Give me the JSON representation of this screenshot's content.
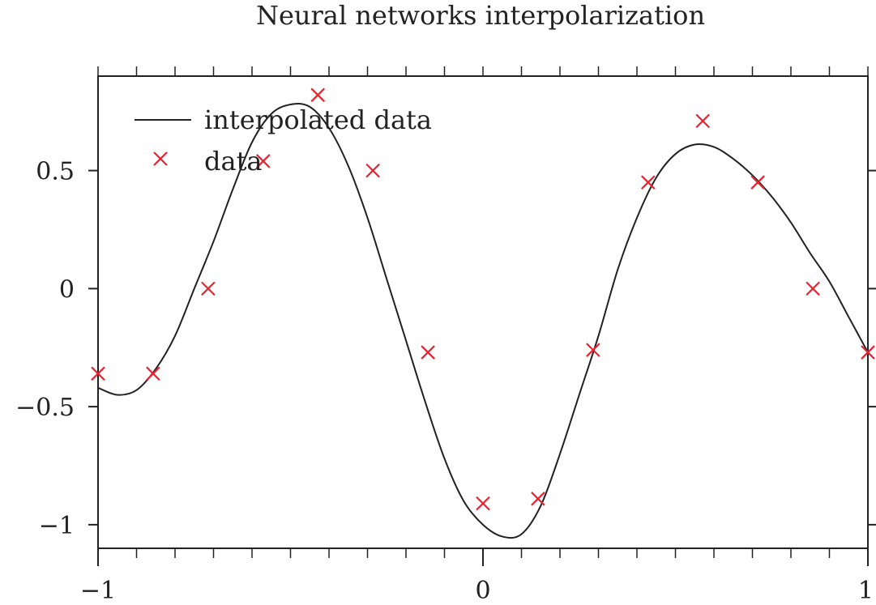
{
  "chart_data": {
    "type": "line",
    "title": "Neural networks interpolarization",
    "xlabel": "",
    "ylabel": "",
    "xlim": [
      -1,
      1
    ],
    "ylim": [
      -1.1,
      0.9
    ],
    "x_ticks": [
      -1,
      0,
      1
    ],
    "x_tick_labels": [
      "−1",
      "0",
      "1"
    ],
    "y_ticks": [
      0.5,
      0,
      -0.5,
      -1
    ],
    "y_tick_labels": [
      "0.5",
      "0",
      "−0.5",
      "−1"
    ],
    "grid": false,
    "legend_position": "top-left",
    "series": [
      {
        "name": "interpolated data",
        "style": "line",
        "color": "#222222",
        "points": [
          [
            -1.0,
            -0.42
          ],
          [
            -0.95,
            -0.45
          ],
          [
            -0.9,
            -0.43
          ],
          [
            -0.85,
            -0.34
          ],
          [
            -0.8,
            -0.2
          ],
          [
            -0.75,
            0.0
          ],
          [
            -0.7,
            0.2
          ],
          [
            -0.65,
            0.42
          ],
          [
            -0.6,
            0.62
          ],
          [
            -0.55,
            0.74
          ],
          [
            -0.5,
            0.78
          ],
          [
            -0.45,
            0.77
          ],
          [
            -0.4,
            0.68
          ],
          [
            -0.35,
            0.52
          ],
          [
            -0.3,
            0.3
          ],
          [
            -0.25,
            0.04
          ],
          [
            -0.2,
            -0.22
          ],
          [
            -0.15,
            -0.48
          ],
          [
            -0.1,
            -0.72
          ],
          [
            -0.05,
            -0.9
          ],
          [
            0.0,
            -1.0
          ],
          [
            0.05,
            -1.05
          ],
          [
            0.1,
            -1.04
          ],
          [
            0.15,
            -0.92
          ],
          [
            0.2,
            -0.7
          ],
          [
            0.25,
            -0.45
          ],
          [
            0.3,
            -0.2
          ],
          [
            0.35,
            0.08
          ],
          [
            0.4,
            0.3
          ],
          [
            0.45,
            0.47
          ],
          [
            0.5,
            0.57
          ],
          [
            0.55,
            0.61
          ],
          [
            0.6,
            0.6
          ],
          [
            0.65,
            0.55
          ],
          [
            0.7,
            0.48
          ],
          [
            0.75,
            0.39
          ],
          [
            0.8,
            0.28
          ],
          [
            0.85,
            0.15
          ],
          [
            0.9,
            0.03
          ],
          [
            0.95,
            -0.12
          ],
          [
            1.0,
            -0.27
          ]
        ]
      },
      {
        "name": "data",
        "style": "markers",
        "marker": "x",
        "color": "#e8222e",
        "points": [
          [
            -1.0,
            -0.36
          ],
          [
            -0.857,
            -0.36
          ],
          [
            -0.714,
            0.0
          ],
          [
            -0.571,
            0.54
          ],
          [
            -0.429,
            0.82
          ],
          [
            -0.286,
            0.5
          ],
          [
            -0.143,
            -0.27
          ],
          [
            0.0,
            -0.91
          ],
          [
            0.143,
            -0.89
          ],
          [
            0.286,
            -0.26
          ],
          [
            0.429,
            0.45
          ],
          [
            0.571,
            0.71
          ],
          [
            0.714,
            0.45
          ],
          [
            0.857,
            0.0
          ],
          [
            1.0,
            -0.27
          ]
        ]
      }
    ]
  }
}
